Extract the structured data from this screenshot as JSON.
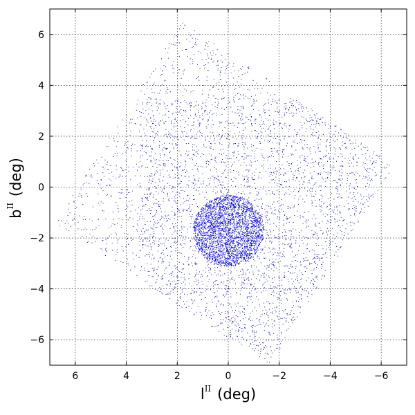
{
  "chart_data": {
    "type": "scatter",
    "xlabel_main": "l",
    "xlabel_sup": "II",
    "xlabel_unit": "(deg)",
    "ylabel_main": "b",
    "ylabel_sup": "II",
    "ylabel_unit": "(deg)",
    "xlim": [
      7,
      -7
    ],
    "ylim": [
      -7,
      7
    ],
    "x_ticks": [
      6,
      4,
      2,
      0,
      -2,
      -4,
      -6
    ],
    "x_tick_labels": [
      "6",
      "4",
      "2",
      "0",
      "−2",
      "−4",
      "−6"
    ],
    "y_ticks": [
      6,
      4,
      2,
      0,
      -2,
      -4,
      -6
    ],
    "y_tick_labels": [
      "6",
      "4",
      "2",
      "0",
      "−2",
      "−4",
      "−6"
    ],
    "grid": true,
    "marker_color": "#0000cc",
    "point_count_approx": 7000,
    "footprint_corners_deg": [
      [
        6.8,
        -1.4
      ],
      [
        1.8,
        6.5
      ],
      [
        -6.5,
        0.9
      ],
      [
        -1.6,
        -7.0
      ]
    ],
    "dense_core": {
      "center_l": 0.0,
      "center_b": -1.7,
      "radius_deg": 1.4
    }
  }
}
